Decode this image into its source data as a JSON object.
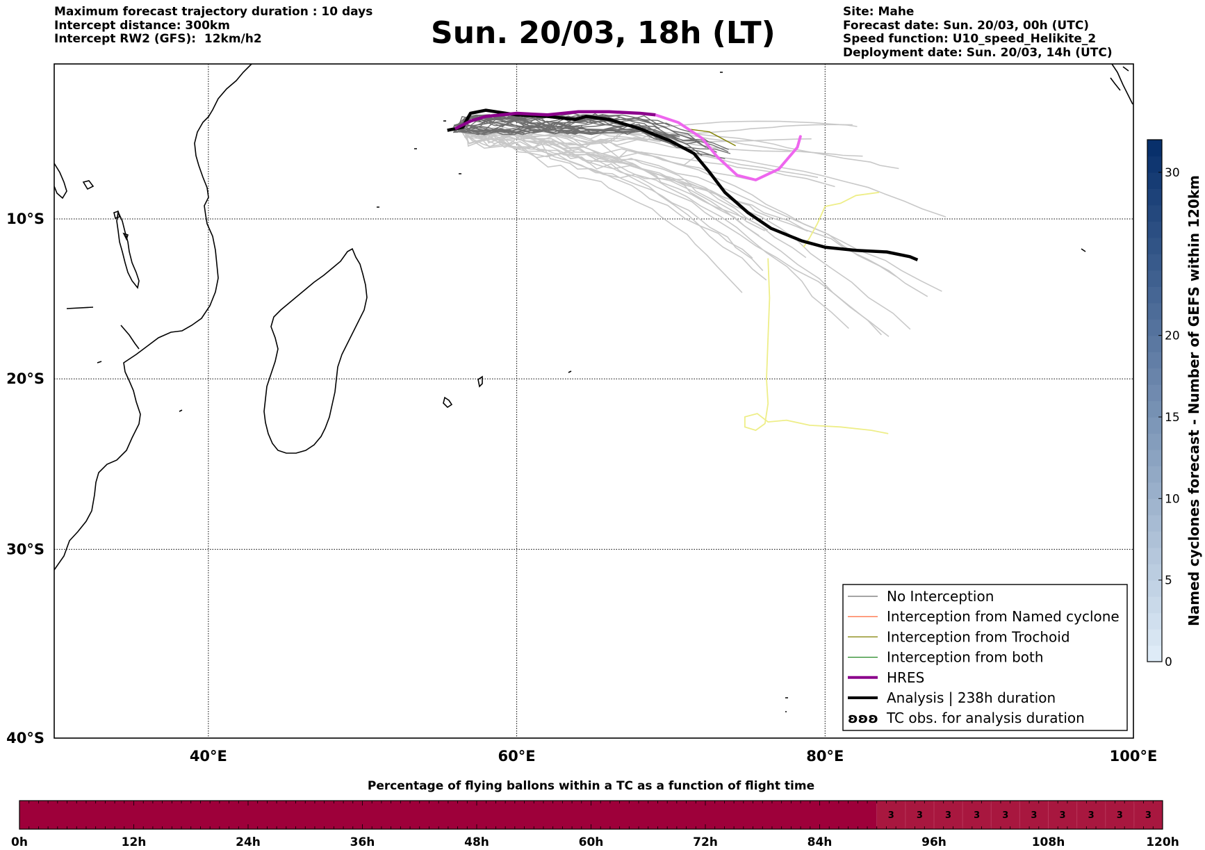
{
  "header": {
    "left_lines": [
      "Maximum forecast trajectory duration : 10 days",
      "Intercept distance: 300km",
      "Intercept RW2 (GFS):  12km/h2"
    ],
    "title": "Sun. 20/03, 18h (LT)",
    "right_lines": [
      "Site: Mahe",
      "Forecast date: Sun. 20/03, 00h (UTC)",
      "Speed function: U10_speed_Helikite_2",
      "Deployment date: Sun. 20/03, 14h (UTC)"
    ]
  },
  "map": {
    "lon_range": [
      30,
      100
    ],
    "lat_range": [
      -40,
      0
    ],
    "lon_ticks": [
      {
        "value": 40,
        "label": "40°E"
      },
      {
        "value": 60,
        "label": "60°E"
      },
      {
        "value": 80,
        "label": "80°E"
      },
      {
        "value": 100,
        "label": "100°E"
      }
    ],
    "lat_ticks": [
      {
        "value": -10,
        "label": "10°S"
      },
      {
        "value": -20,
        "label": "20°S"
      },
      {
        "value": -30,
        "label": "30°S"
      },
      {
        "value": -40,
        "label": "40°S"
      }
    ],
    "colors": {
      "no_interception_dark": "#6e6e6e",
      "no_interception_light": "#c8c8c8",
      "hres": "#8b008b",
      "hres_tail": "#ee66ee",
      "analysis": "#000000",
      "tc_obs": "#eeee88",
      "trochoid": "#808000"
    },
    "hres_track": [
      [
        56,
        -4.2
      ],
      [
        57,
        -3.7
      ],
      [
        58,
        -3.4
      ],
      [
        60,
        -3.2
      ],
      [
        62,
        -3.3
      ],
      [
        64,
        -3.1
      ],
      [
        66,
        -3.1
      ],
      [
        68,
        -3.2
      ],
      [
        69,
        -3.3
      ]
    ],
    "hres_tail_track": [
      [
        69,
        -3.3
      ],
      [
        70.5,
        -3.8
      ],
      [
        72,
        -4.8
      ],
      [
        73,
        -6
      ],
      [
        74.3,
        -7.2
      ],
      [
        75.5,
        -7.5
      ],
      [
        77,
        -6.8
      ],
      [
        78.2,
        -5.4
      ],
      [
        78.4,
        -4.7
      ]
    ],
    "analysis_track": [
      [
        55.5,
        -4.3
      ],
      [
        56.5,
        -4.1
      ],
      [
        57,
        -3.2
      ],
      [
        58,
        -3.0
      ],
      [
        60,
        -3.3
      ],
      [
        62,
        -3.4
      ],
      [
        63.8,
        -3.6
      ],
      [
        64.5,
        -3.4
      ],
      [
        66,
        -3.6
      ],
      [
        68,
        -4.2
      ],
      [
        70,
        -5
      ],
      [
        71.5,
        -5.8
      ],
      [
        72.5,
        -7
      ],
      [
        73.5,
        -8.3
      ],
      [
        75,
        -9.6
      ],
      [
        76.5,
        -10.6
      ],
      [
        78.5,
        -11.4
      ],
      [
        80,
        -11.8
      ],
      [
        82,
        -12
      ],
      [
        84,
        -12.1
      ],
      [
        85.5,
        -12.4
      ],
      [
        86,
        -12.6
      ]
    ],
    "tc_obs_track": [
      [
        83.5,
        -8.3
      ],
      [
        82,
        -8.5
      ],
      [
        81,
        -9
      ],
      [
        80,
        -9.2
      ],
      [
        79.5,
        -10.3
      ],
      [
        79,
        -11.2
      ],
      [
        78.6,
        -11.8
      ]
    ],
    "tc_obs_track_2": [
      [
        76.3,
        -12.5
      ],
      [
        76.4,
        -15
      ],
      [
        76.3,
        -17.5
      ],
      [
        76.2,
        -20
      ],
      [
        76.3,
        -21.5
      ],
      [
        76.1,
        -22.7
      ],
      [
        75.5,
        -23.1
      ],
      [
        74.8,
        -22.9
      ],
      [
        74.8,
        -22.3
      ],
      [
        75.6,
        -22.1
      ],
      [
        76.3,
        -22.6
      ],
      [
        77.5,
        -22.5
      ],
      [
        79,
        -22.8
      ],
      [
        81,
        -22.9
      ],
      [
        83,
        -23.1
      ],
      [
        84.1,
        -23.3
      ]
    ],
    "trochoid_track": [
      [
        71,
        -4.2
      ],
      [
        72.5,
        -4.4
      ],
      [
        74.2,
        -5.3
      ]
    ]
  },
  "legend": {
    "items": [
      {
        "label": "No Interception",
        "color": "#6e6e6e",
        "width": 1.2
      },
      {
        "label": "Interception from Named cyclone",
        "color": "#ff5522",
        "width": 1.2
      },
      {
        "label": "Interception from Trochoid",
        "color": "#808000",
        "width": 1.2
      },
      {
        "label": "Interception from both",
        "color": "#228822",
        "width": 1.2
      },
      {
        "label": "HRES",
        "color": "#8b008b",
        "width": 4
      },
      {
        "label": "Analysis | 238h duration",
        "color": "#000000",
        "width": 4
      },
      {
        "label": "TC obs. for analysis duration",
        "symbol": "ʚʚʚ"
      }
    ]
  },
  "colorbar": {
    "title": "Named cyclones forecast - Number of GEFS within 120km",
    "range": [
      0,
      32
    ],
    "ticks": [
      0,
      5,
      10,
      15,
      20,
      30
    ],
    "colors": [
      "#deebf7",
      "#08306b"
    ]
  },
  "progress_bar": {
    "title": "Percentage of flying ballons within a TC as a function of flight time",
    "ticks": [
      "0h",
      "12h",
      "24h",
      "36h",
      "48h",
      "60h",
      "72h",
      "84h",
      "96h",
      "108h",
      "120h"
    ],
    "range_hours": [
      0,
      120
    ],
    "fill_color": "#9e003a",
    "fill_color_light": "#a8173f",
    "value_start_hour": 90,
    "cell_values": [
      "3",
      "3",
      "3",
      "3",
      "3",
      "3",
      "3",
      "3",
      "3",
      "3"
    ]
  }
}
